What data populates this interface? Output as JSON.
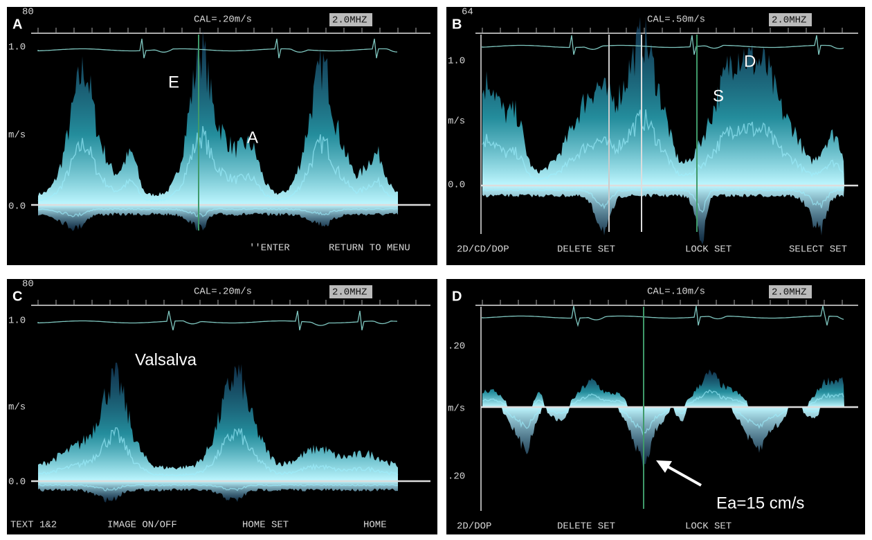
{
  "panels": [
    {
      "letter": "A",
      "corner": "80",
      "cal": "CAL=.20m/s",
      "frequency": "2.0MHZ",
      "axis_labels": [
        "1.0",
        "m/s",
        "0.0"
      ],
      "annotations": [
        "E",
        "A"
      ],
      "menu": [
        "''ENTER",
        "RETURN TO MENU"
      ]
    },
    {
      "letter": "B",
      "corner": "64",
      "cal": "CAL=.50m/s",
      "frequency": "2.0MHZ",
      "axis_labels": [
        "1.0",
        "m/s",
        "0.0"
      ],
      "annotations": [
        "S",
        "D"
      ],
      "menu": [
        "2D/CD/DOP",
        "DELETE SET",
        "LOCK SET",
        "SELECT SET"
      ]
    },
    {
      "letter": "C",
      "corner": "80",
      "cal": "CAL=.20m/s",
      "frequency": "2.0MHZ",
      "axis_labels": [
        "1.0",
        "m/s",
        "0.0"
      ],
      "annotations": [
        "Valsalva"
      ],
      "menu": [
        "TEXT 1&2",
        "IMAGE ON/OFF",
        "HOME SET",
        "HOME"
      ]
    },
    {
      "letter": "D",
      "cal": "CAL=.10m/s",
      "frequency": "2.0MHZ",
      "axis_labels": [
        ".20",
        "m/s",
        ".20"
      ],
      "annotations": [
        "Ea=15 cm/s"
      ],
      "menu": [
        "2D/DOP",
        "DELETE SET",
        "LOCK SET"
      ]
    }
  ]
}
